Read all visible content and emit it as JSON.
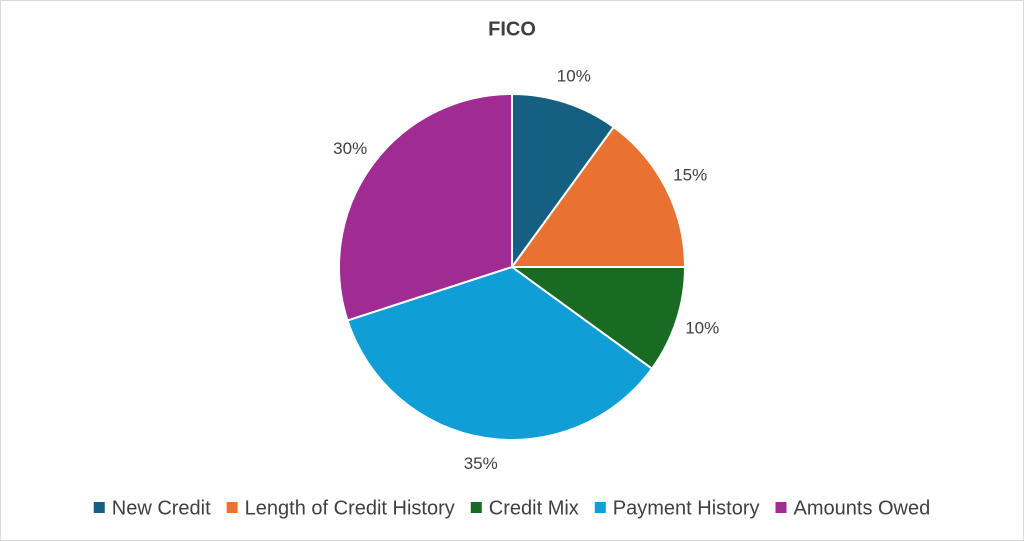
{
  "chart_data": {
    "type": "pie",
    "title": "FICO",
    "categories": [
      "New Credit",
      "Length of Credit History",
      "Credit Mix",
      "Payment History",
      "Amounts Owed"
    ],
    "values": [
      10,
      15,
      10,
      35,
      30
    ],
    "value_labels": [
      "10%",
      "15%",
      "10%",
      "35%",
      "30%"
    ],
    "colors": [
      "#156082",
      "#e97132",
      "#196b24",
      "#0f9ed5",
      "#a02b93"
    ],
    "legend": "bottom"
  }
}
